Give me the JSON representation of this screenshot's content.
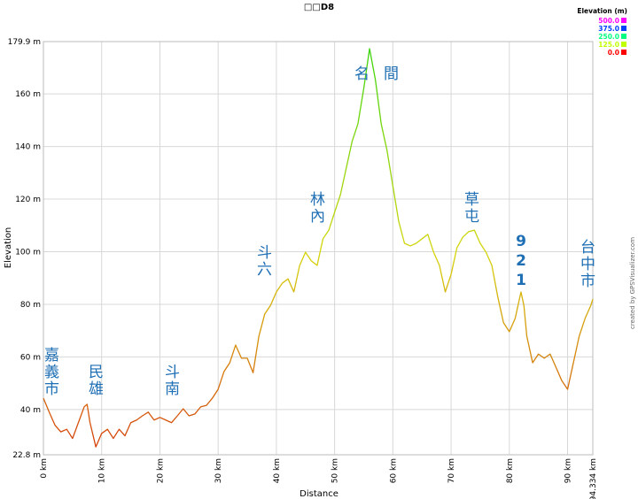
{
  "chart_data": {
    "type": "line",
    "title": "□□D8",
    "x_label": "Distance",
    "y_label": "Elevation",
    "x": [
      0,
      1,
      2,
      3,
      4,
      5,
      6,
      7,
      7.5,
      8,
      9,
      10,
      11,
      12,
      13,
      14,
      15,
      16,
      17,
      18,
      19,
      20,
      21,
      22,
      23,
      24,
      25,
      26,
      27,
      28,
      29,
      30,
      31,
      32,
      33,
      34,
      35,
      36,
      37,
      38,
      39,
      40,
      41,
      42,
      43,
      44,
      45,
      46,
      47,
      48,
      49,
      50,
      51,
      52,
      53,
      54,
      55,
      56,
      57,
      58,
      59,
      60,
      61,
      62,
      63,
      64,
      65,
      66,
      67,
      68,
      69,
      70,
      71,
      72,
      73,
      74,
      75,
      76,
      77,
      78,
      79,
      80,
      81,
      82,
      82.5,
      83,
      84,
      85,
      86,
      87,
      88,
      89,
      90,
      91,
      92,
      93,
      94,
      94.334
    ],
    "values": [
      44.3,
      39,
      34,
      31.5,
      32.5,
      29,
      35,
      41,
      42,
      35,
      25.8,
      30.9,
      32.5,
      29,
      32.5,
      30,
      35,
      36,
      37.6,
      39,
      36,
      37,
      36,
      35,
      37.6,
      40.3,
      37.6,
      38.3,
      41,
      41.6,
      44.3,
      47.7,
      54.4,
      57.8,
      64.5,
      59.5,
      59.5,
      54,
      67.9,
      76.3,
      79.6,
      84.7,
      88,
      89.7,
      84.7,
      94.8,
      99.8,
      96.5,
      94.8,
      104.9,
      108.2,
      115,
      121.7,
      131.8,
      141.9,
      148.6,
      162,
      177.2,
      165.4,
      148.6,
      138.5,
      125,
      111.6,
      103.2,
      102.2,
      103.2,
      104.9,
      106.6,
      99.8,
      94.8,
      84.7,
      91.4,
      101.5,
      105.5,
      107.6,
      108.2,
      103.2,
      99.8,
      94.8,
      83,
      73,
      69.6,
      74.6,
      84.7,
      79.6,
      67.9,
      57.8,
      61.1,
      59.5,
      61.1,
      56.1,
      51,
      47.7,
      57.8,
      67.9,
      74.6,
      79.6,
      82
    ],
    "xlim": [
      0,
      94.334
    ],
    "ylim": [
      22.8,
      179.9
    ],
    "xticks": [
      {
        "value": 0,
        "label": "0 km"
      },
      {
        "value": 10,
        "label": "10 km"
      },
      {
        "value": 20,
        "label": "20 km"
      },
      {
        "value": 30,
        "label": "30 km"
      },
      {
        "value": 40,
        "label": "40 km"
      },
      {
        "value": 50,
        "label": "50 km"
      },
      {
        "value": 60,
        "label": "60 km"
      },
      {
        "value": 70,
        "label": "70 km"
      },
      {
        "value": 80,
        "label": "80 km"
      },
      {
        "value": 90,
        "label": "90 km"
      },
      {
        "value": 94.334,
        "label": "94.334 km"
      }
    ],
    "yticks": [
      {
        "value": 22.8,
        "label": "22.8 m"
      },
      {
        "value": 40,
        "label": "40 m"
      },
      {
        "value": 60,
        "label": "60 m"
      },
      {
        "value": 80,
        "label": "80 m"
      },
      {
        "value": 100,
        "label": "100 m"
      },
      {
        "value": 120,
        "label": "120 m"
      },
      {
        "value": 140,
        "label": "140 m"
      },
      {
        "value": 160,
        "label": "160 m"
      },
      {
        "value": 179.9,
        "label": "179.9 m"
      }
    ],
    "grid": true,
    "legend": {
      "title": "Elevation (m)",
      "stops": [
        {
          "value": 500,
          "label": "500.0",
          "color": "#ff00ff"
        },
        {
          "value": 375,
          "label": "375.0",
          "color": "#0040ff"
        },
        {
          "value": 250,
          "label": "250.0",
          "color": "#00ff80"
        },
        {
          "value": 125,
          "label": "125.0",
          "color": "#bfff00"
        },
        {
          "value": 0,
          "label": "0.0",
          "color": "#ff0000"
        }
      ]
    },
    "annotations": [
      "嘉義市",
      "民雄",
      "斗南",
      "斗六",
      "林內",
      "名間",
      "草屯",
      "921",
      "台中市"
    ],
    "credit": "created by GPSVisualizer.com"
  }
}
